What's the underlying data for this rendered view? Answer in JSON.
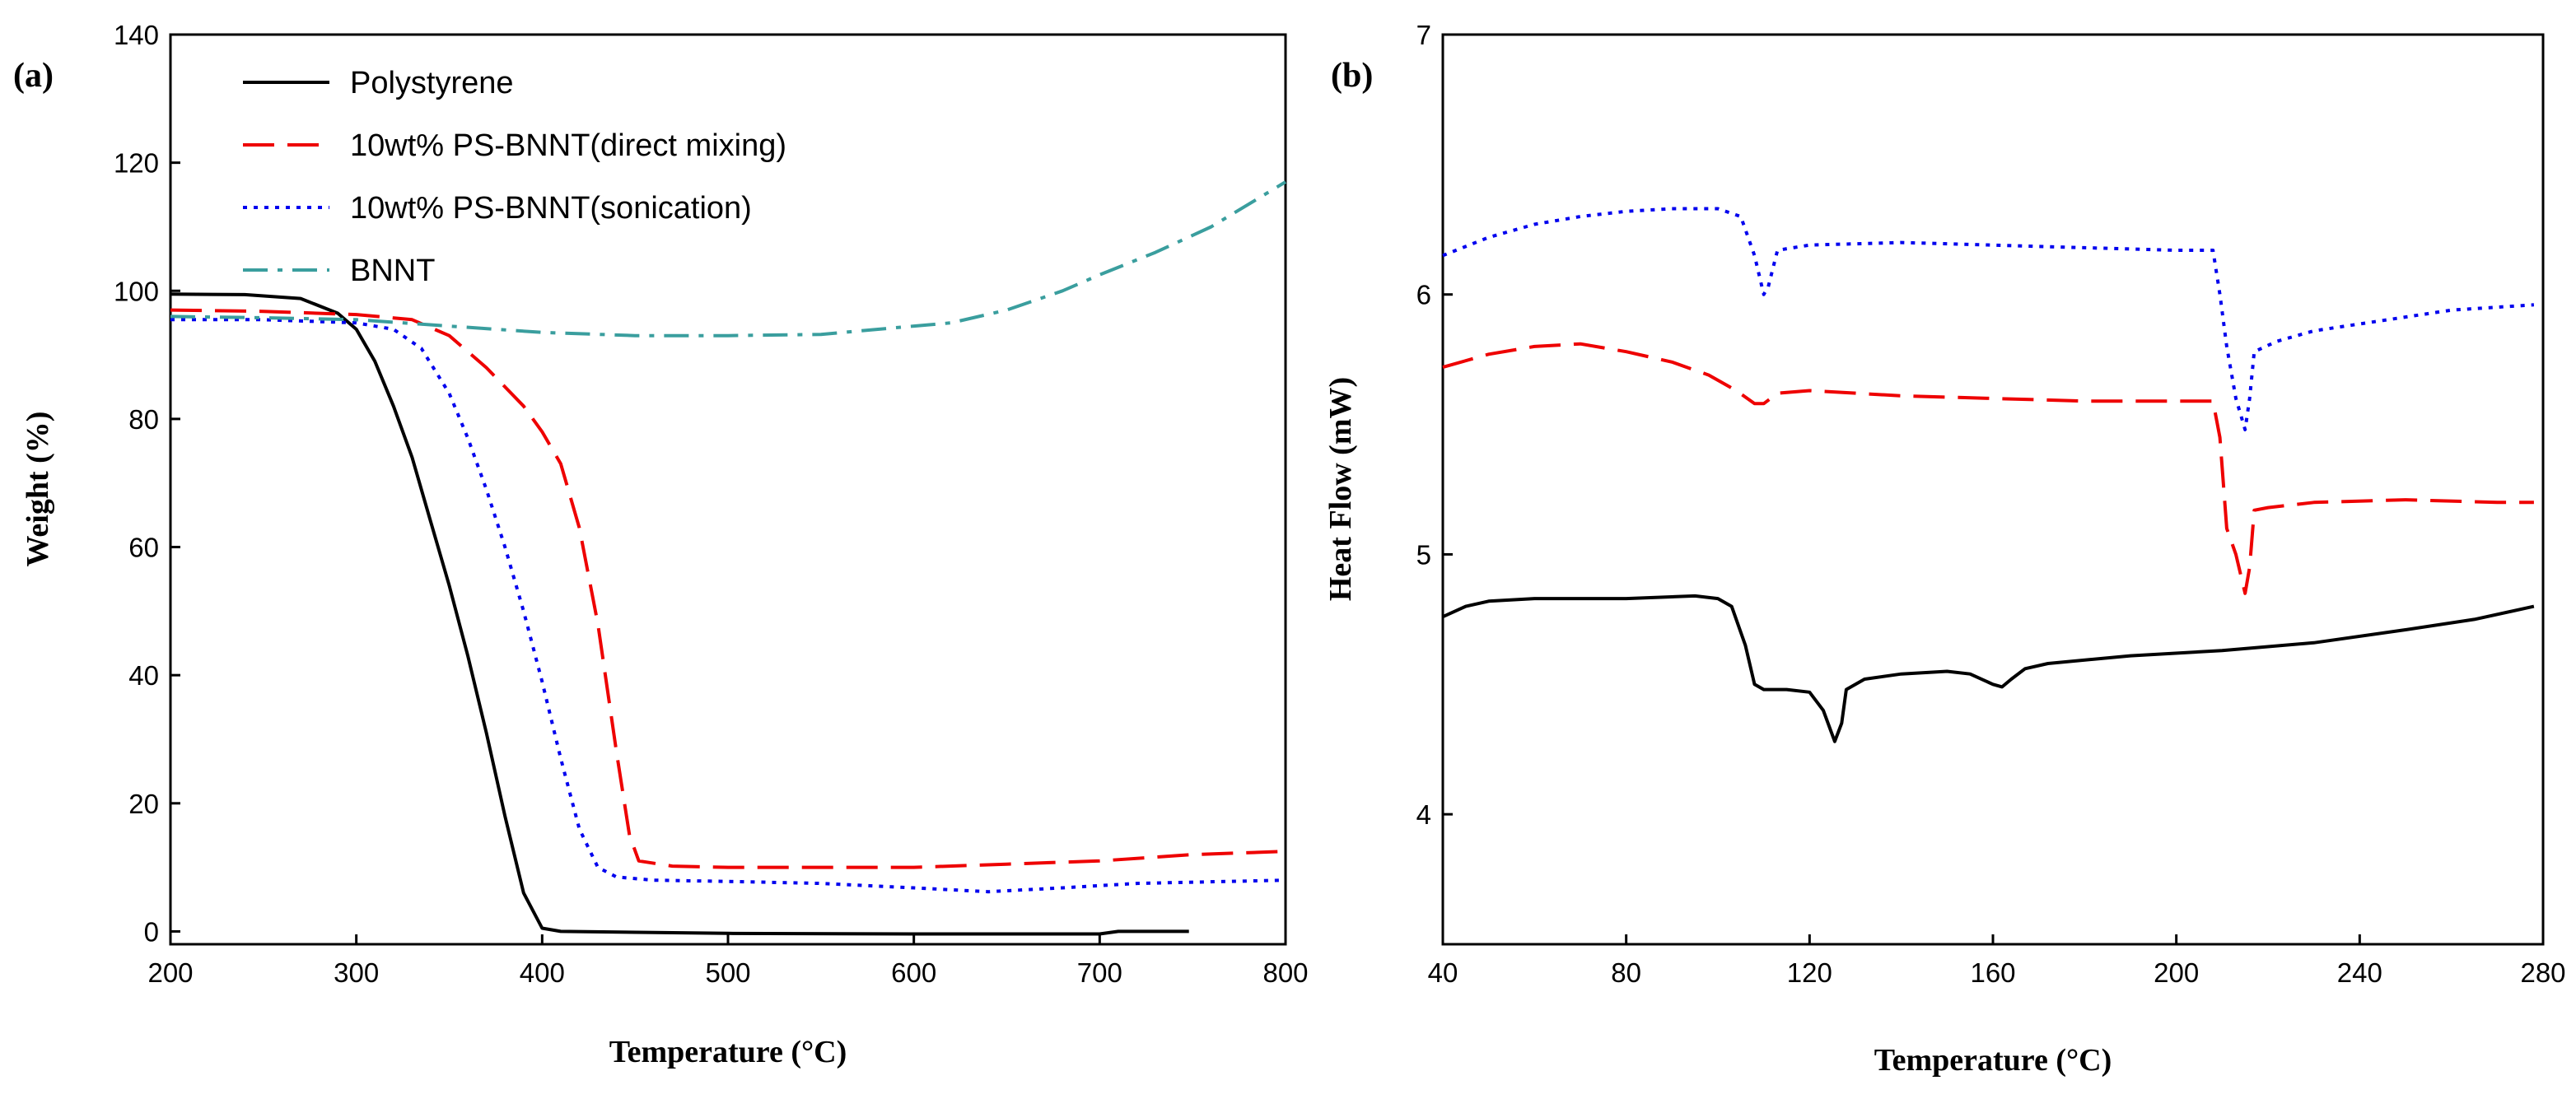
{
  "chart_data": [
    {
      "type": "line",
      "panel_label": "(a)",
      "xlabel": "Temperature (°C)",
      "ylabel": "Weight (%)",
      "xlim": [
        200,
        800
      ],
      "ylim": [
        -2,
        140
      ],
      "xticks": [
        200,
        300,
        400,
        500,
        600,
        700,
        800
      ],
      "yticks": [
        0,
        20,
        40,
        60,
        80,
        100,
        120,
        140
      ],
      "legend_position": "top-left",
      "series": [
        {
          "name": "Polystyrene",
          "color": "#000000",
          "dash": "solid",
          "points": [
            [
              200,
              99.5
            ],
            [
              240,
              99.4
            ],
            [
              270,
              98.8
            ],
            [
              290,
              96.5
            ],
            [
              300,
              94
            ],
            [
              310,
              89
            ],
            [
              320,
              82
            ],
            [
              330,
              74
            ],
            [
              340,
              64
            ],
            [
              350,
              54
            ],
            [
              360,
              43
            ],
            [
              370,
              31
            ],
            [
              380,
              18
            ],
            [
              390,
              6
            ],
            [
              400,
              0.5
            ],
            [
              410,
              0
            ],
            [
              500,
              -0.3
            ],
            [
              600,
              -0.4
            ],
            [
              700,
              -0.4
            ],
            [
              710,
              0
            ],
            [
              748,
              0
            ]
          ]
        },
        {
          "name": "10wt% PS-BNNT(direct mixing)",
          "color": "#ee0000",
          "dash": "long-dash",
          "points": [
            [
              200,
              97
            ],
            [
              250,
              96.8
            ],
            [
              300,
              96.3
            ],
            [
              330,
              95.5
            ],
            [
              350,
              93
            ],
            [
              370,
              88
            ],
            [
              390,
              82
            ],
            [
              400,
              78
            ],
            [
              410,
              73
            ],
            [
              420,
              63
            ],
            [
              430,
              48
            ],
            [
              440,
              28
            ],
            [
              447,
              15
            ],
            [
              452,
              11
            ],
            [
              470,
              10.2
            ],
            [
              500,
              10
            ],
            [
              600,
              10
            ],
            [
              650,
              10.5
            ],
            [
              700,
              11
            ],
            [
              750,
              12
            ],
            [
              800,
              12.5
            ]
          ]
        },
        {
          "name": "10wt% PS-BNNT(sonication)",
          "color": "#0000ee",
          "dash": "dotted",
          "points": [
            [
              200,
              95.5
            ],
            [
              250,
              95.5
            ],
            [
              300,
              95
            ],
            [
              320,
              94
            ],
            [
              335,
              91
            ],
            [
              350,
              84
            ],
            [
              360,
              77
            ],
            [
              370,
              69
            ],
            [
              380,
              60
            ],
            [
              390,
              50
            ],
            [
              400,
              39
            ],
            [
              410,
              27
            ],
            [
              420,
              16
            ],
            [
              430,
              10
            ],
            [
              440,
              8.5
            ],
            [
              460,
              8
            ],
            [
              500,
              7.8
            ],
            [
              550,
              7.5
            ],
            [
              600,
              6.8
            ],
            [
              640,
              6.2
            ],
            [
              680,
              6.8
            ],
            [
              720,
              7.5
            ],
            [
              800,
              8
            ]
          ]
        },
        {
          "name": "BNNT",
          "color": "#3a9e9e",
          "dash": "dash-dot",
          "points": [
            [
              200,
              96
            ],
            [
              250,
              95.8
            ],
            [
              300,
              95.5
            ],
            [
              350,
              94.5
            ],
            [
              400,
              93.5
            ],
            [
              450,
              93
            ],
            [
              500,
              93
            ],
            [
              550,
              93.2
            ],
            [
              600,
              94.5
            ],
            [
              620,
              95
            ],
            [
              650,
              97
            ],
            [
              680,
              100
            ],
            [
              700,
              102.5
            ],
            [
              730,
              106
            ],
            [
              760,
              110
            ],
            [
              800,
              117
            ]
          ]
        }
      ]
    },
    {
      "type": "line",
      "panel_label": "(b)",
      "xlabel": "Temperature (°C)",
      "ylabel": "Heat Flow (mW)",
      "xlim": [
        40,
        280
      ],
      "ylim": [
        3.5,
        7
      ],
      "xticks": [
        40,
        80,
        120,
        160,
        200,
        240,
        280
      ],
      "yticks": [
        4,
        5,
        6,
        7
      ],
      "series": [
        {
          "name": "Polystyrene",
          "color": "#000000",
          "dash": "solid",
          "points": [
            [
              40,
              4.76
            ],
            [
              45,
              4.8
            ],
            [
              50,
              4.82
            ],
            [
              60,
              4.83
            ],
            [
              80,
              4.83
            ],
            [
              95,
              4.84
            ],
            [
              100,
              4.83
            ],
            [
              103,
              4.8
            ],
            [
              106,
              4.65
            ],
            [
              108,
              4.5
            ],
            [
              110,
              4.48
            ],
            [
              115,
              4.48
            ],
            [
              120,
              4.47
            ],
            [
              123,
              4.4
            ],
            [
              125.5,
              4.28
            ],
            [
              127,
              4.35
            ],
            [
              128,
              4.48
            ],
            [
              132,
              4.52
            ],
            [
              140,
              4.54
            ],
            [
              150,
              4.55
            ],
            [
              155,
              4.54
            ],
            [
              160,
              4.5
            ],
            [
              162,
              4.49
            ],
            [
              164,
              4.52
            ],
            [
              167,
              4.56
            ],
            [
              172,
              4.58
            ],
            [
              190,
              4.61
            ],
            [
              210,
              4.63
            ],
            [
              230,
              4.66
            ],
            [
              250,
              4.71
            ],
            [
              265,
              4.75
            ],
            [
              278,
              4.8
            ]
          ]
        },
        {
          "name": "10wt% PS-BNNT(direct mixing)",
          "color": "#ee0000",
          "dash": "long-dash",
          "points": [
            [
              40,
              5.72
            ],
            [
              50,
              5.77
            ],
            [
              60,
              5.8
            ],
            [
              70,
              5.81
            ],
            [
              80,
              5.78
            ],
            [
              90,
              5.74
            ],
            [
              98,
              5.69
            ],
            [
              104,
              5.63
            ],
            [
              108,
              5.58
            ],
            [
              110,
              5.58
            ],
            [
              113,
              5.62
            ],
            [
              120,
              5.63
            ],
            [
              140,
              5.61
            ],
            [
              160,
              5.6
            ],
            [
              180,
              5.59
            ],
            [
              200,
              5.59
            ],
            [
              208,
              5.59
            ],
            [
              209.5,
              5.45
            ],
            [
              211,
              5.1
            ],
            [
              213,
              5.0
            ],
            [
              215,
              4.85
            ],
            [
              216,
              4.95
            ],
            [
              217,
              5.17
            ],
            [
              220,
              5.18
            ],
            [
              230,
              5.2
            ],
            [
              250,
              5.21
            ],
            [
              270,
              5.2
            ],
            [
              278,
              5.2
            ]
          ]
        },
        {
          "name": "10wt% PS-BNNT(sonication)",
          "color": "#0000ee",
          "dash": "dotted",
          "points": [
            [
              40,
              6.15
            ],
            [
              50,
              6.22
            ],
            [
              60,
              6.27
            ],
            [
              70,
              6.3
            ],
            [
              80,
              6.32
            ],
            [
              90,
              6.33
            ],
            [
              100,
              6.33
            ],
            [
              105,
              6.3
            ],
            [
              108,
              6.15
            ],
            [
              110,
              6.0
            ],
            [
              111,
              6.03
            ],
            [
              113,
              6.17
            ],
            [
              120,
              6.19
            ],
            [
              140,
              6.2
            ],
            [
              160,
              6.19
            ],
            [
              180,
              6.18
            ],
            [
              200,
              6.17
            ],
            [
              208,
              6.17
            ],
            [
              209.5,
              6.0
            ],
            [
              211,
              5.8
            ],
            [
              213,
              5.6
            ],
            [
              215,
              5.48
            ],
            [
              216,
              5.6
            ],
            [
              217,
              5.78
            ],
            [
              222,
              5.82
            ],
            [
              230,
              5.86
            ],
            [
              245,
              5.9
            ],
            [
              260,
              5.94
            ],
            [
              278,
              5.96
            ]
          ]
        }
      ]
    }
  ]
}
